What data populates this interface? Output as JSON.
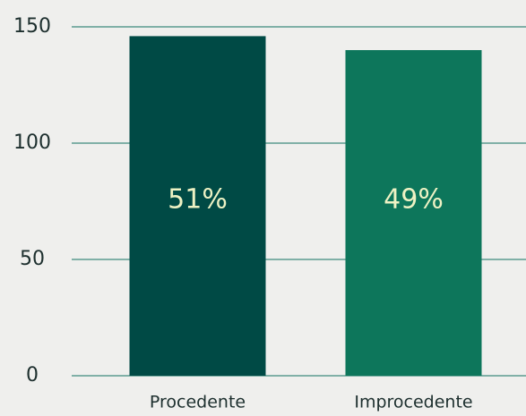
{
  "chart_data": {
    "type": "bar",
    "categories": [
      "Procedente",
      "Improcedente"
    ],
    "values": [
      146,
      140
    ],
    "percent_labels": [
      "51%",
      "49%"
    ],
    "colors": [
      "#004a45",
      "#0d765b"
    ],
    "ylim": [
      0,
      150
    ],
    "yticks": [
      0,
      50,
      100,
      150
    ],
    "grid": true
  }
}
